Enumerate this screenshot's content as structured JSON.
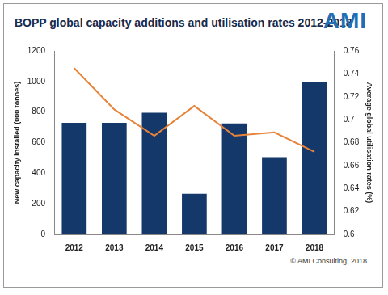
{
  "chart_data": {
    "type": "bar",
    "title": "BOPP global capacity additions and utilisation rates 2012-2018",
    "annotations": [
      "AMI",
      "© AMI Consulting, 2018"
    ],
    "categories": [
      "2012",
      "2013",
      "2014",
      "2015",
      "2016",
      "2017",
      "2018"
    ],
    "series": [
      {
        "type": "bar",
        "color": "#15386b",
        "values": [
          730,
          730,
          795,
          265,
          725,
          505,
          995
        ]
      },
      {
        "type": "line",
        "color": "#e8833a",
        "axis": "y2",
        "values": [
          0.745,
          0.709,
          0.686,
          0.712,
          0.686,
          0.689,
          0.672
        ]
      }
    ],
    "y_label": "New capacity installed (000 tonnes)",
    "y2_label": "Average global utilisation rates (%)",
    "ylim": [
      0,
      1200
    ],
    "yticks": [
      0,
      200,
      400,
      600,
      800,
      1000,
      1200
    ],
    "y2lim": [
      0.6,
      0.76
    ],
    "y2ticks": [
      0.6,
      0.62,
      0.64,
      0.66,
      0.68,
      0.7,
      0.72,
      0.74,
      0.76
    ],
    "grid": false
  }
}
